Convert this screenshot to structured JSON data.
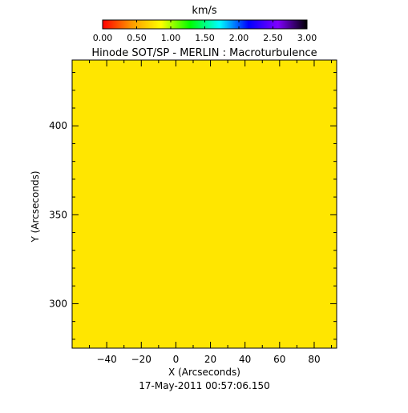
{
  "chart_data": {
    "type": "heatmap",
    "title": "Hinode SOT/SP - MERLIN : Macroturbulence",
    "subtitle": "17-May-2011 00:57:06.150",
    "xlabel": "X (Arcseconds)",
    "ylabel": "Y (Arcseconds)",
    "xlim": [
      -60,
      93
    ],
    "ylim": [
      275,
      437
    ],
    "xticks": [
      -40,
      -20,
      0,
      20,
      40,
      60,
      80
    ],
    "yticks": [
      300,
      350,
      400
    ],
    "fill_color": "#ffe600",
    "grid": false,
    "colorbar": {
      "label": "km/s",
      "range": [
        0,
        3
      ],
      "ticks": [
        "0.00",
        "0.50",
        "1.00",
        "1.50",
        "2.00",
        "2.50",
        "3.00"
      ],
      "colors": [
        "#ff0000",
        "#ff9900",
        "#ffff00",
        "#00ff00",
        "#00ffff",
        "#0000ff",
        "#8000ff",
        "#000000"
      ]
    }
  }
}
